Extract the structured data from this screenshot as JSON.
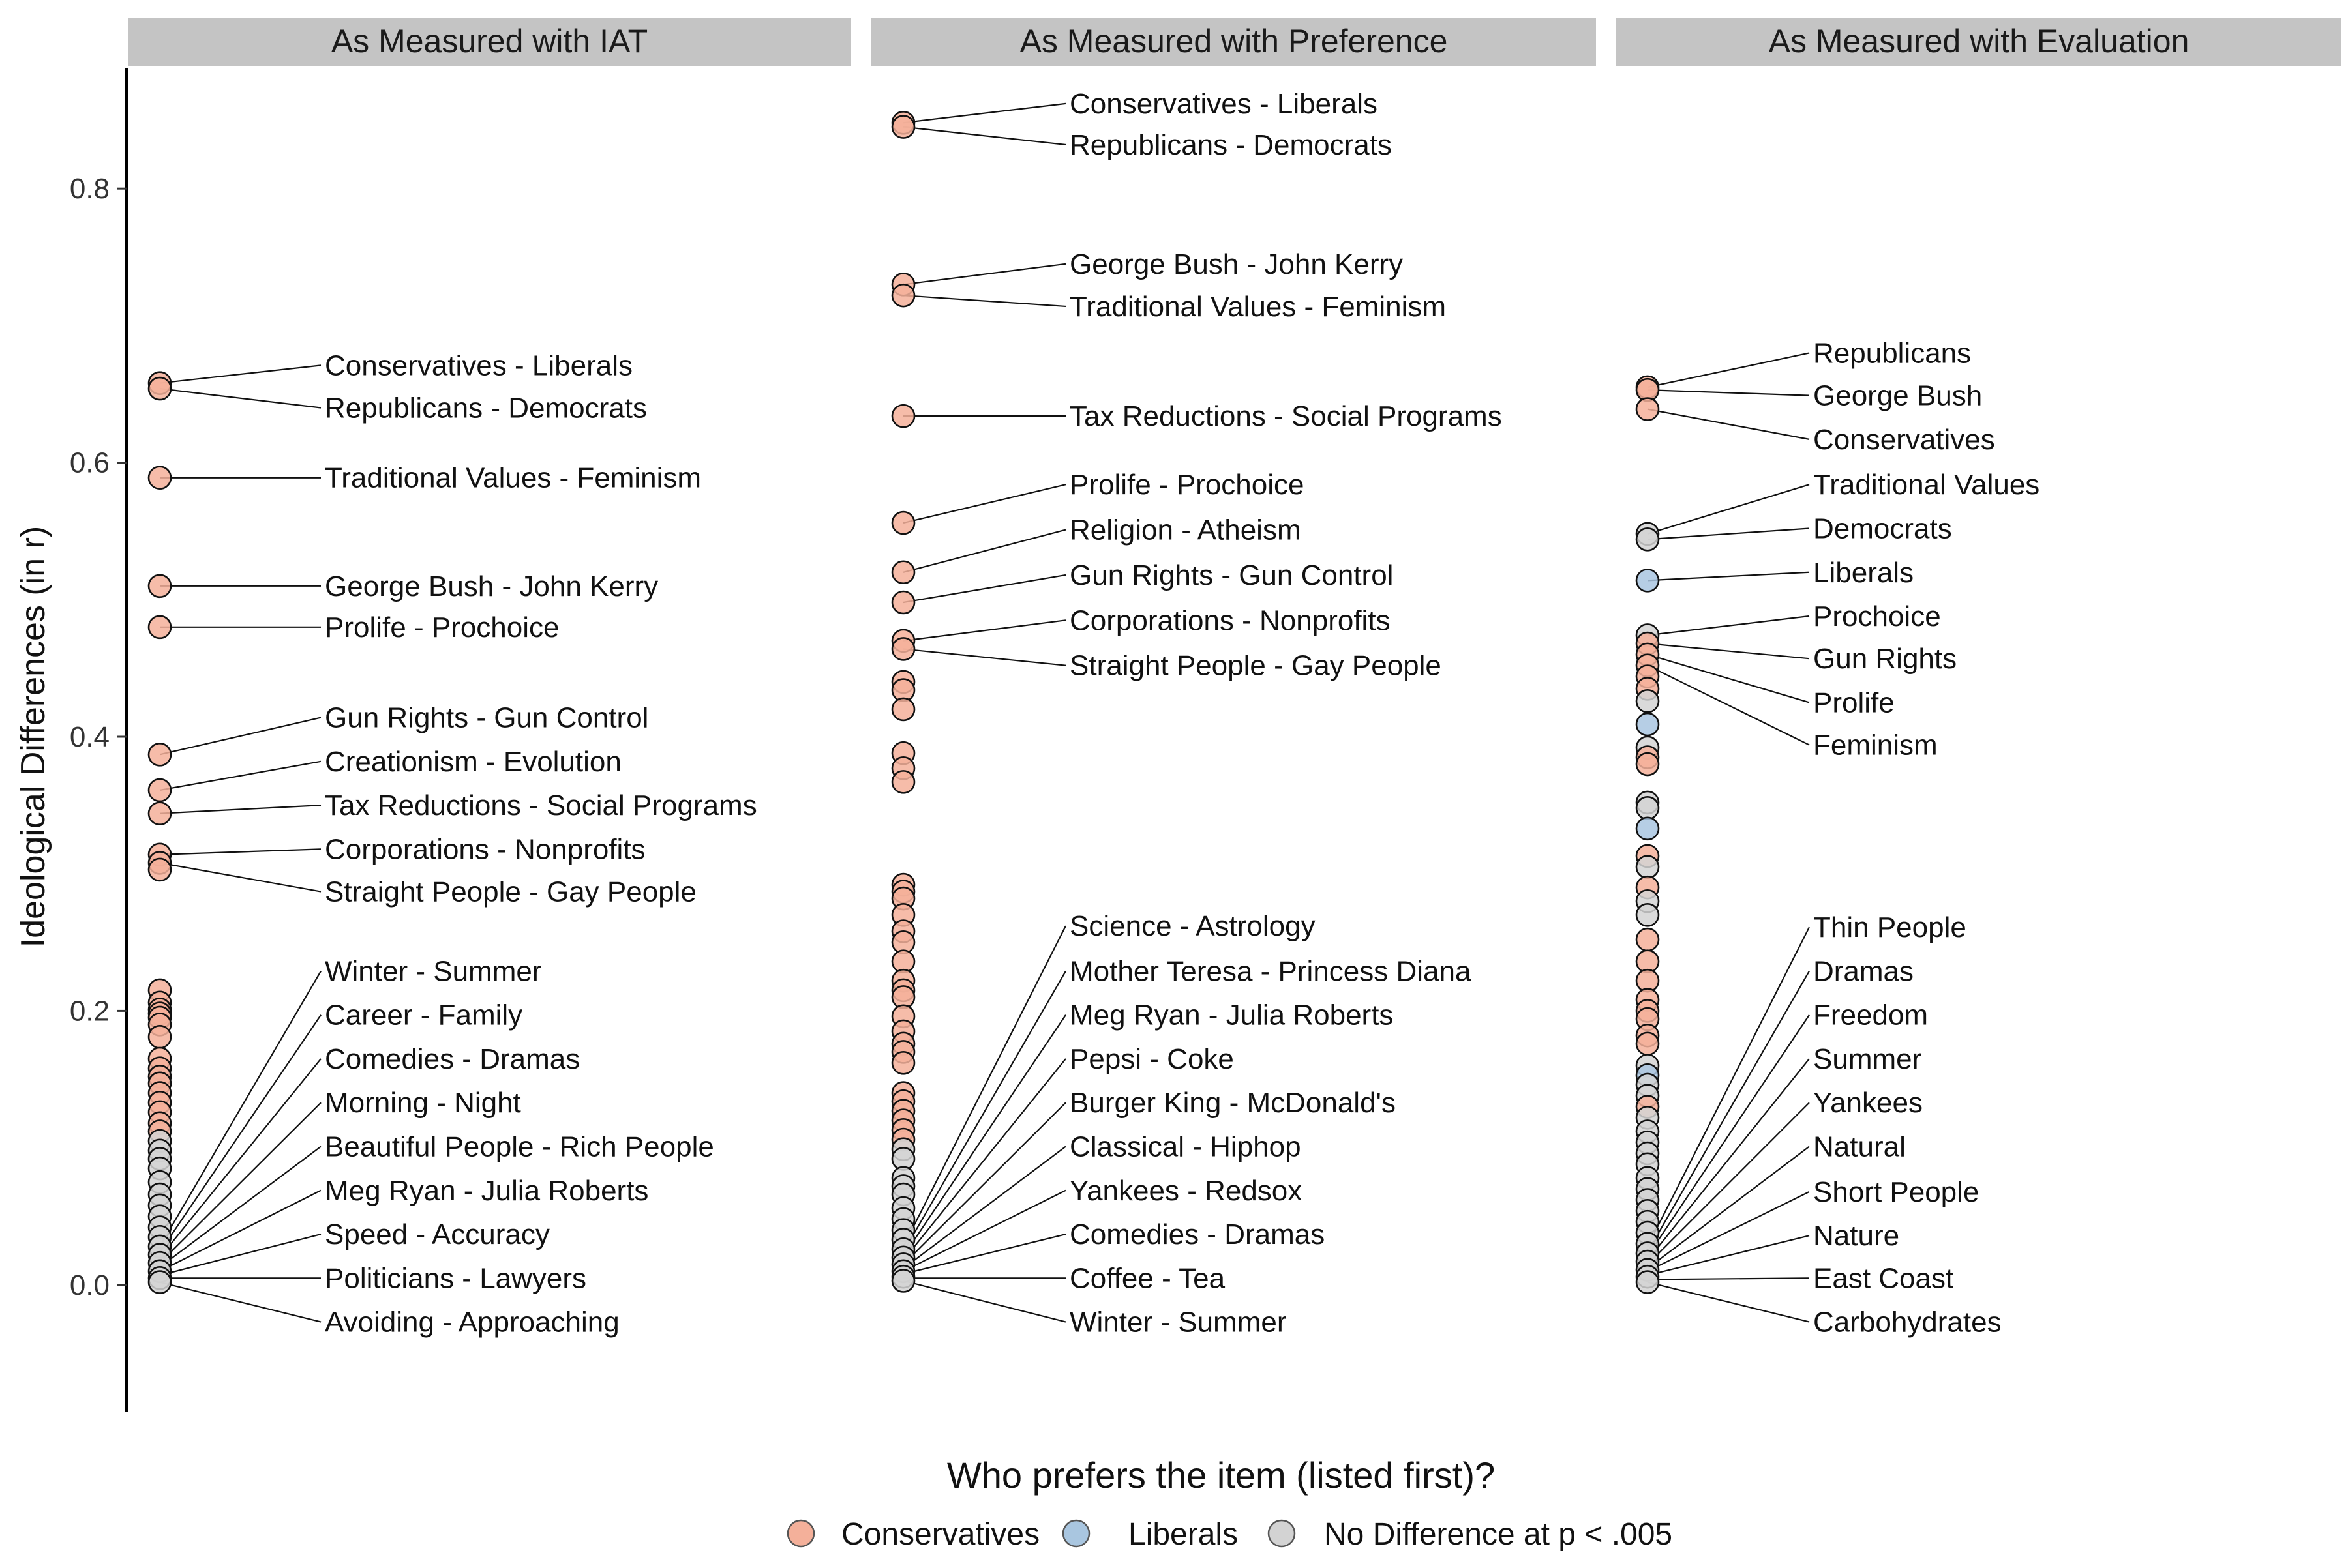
{
  "chart_data": {
    "type": "scatter",
    "ylabel": "Ideological Differences (in r)",
    "ylim": [
      -0.09,
      0.89
    ],
    "yticks": [
      0.0,
      0.2,
      0.4,
      0.6,
      0.8
    ],
    "ytick_labels": [
      "0.0",
      "0.2",
      "0.4",
      "0.6",
      "0.8"
    ],
    "legend": {
      "title": "Who prefers the item (listed first)?",
      "placement": "bottom",
      "entries": [
        {
          "name": "Conservatives",
          "color": "#F4B09A"
        },
        {
          "name": "Liberals",
          "color": "#A9C6E0"
        },
        {
          "name": "No Difference at p < .005",
          "color": "#D3D3D3"
        }
      ]
    },
    "colors": {
      "Conservatives": "#F4B09A",
      "Conservatives-dense": "#EE8A6E",
      "Liberals": "#A9C6E0",
      "No Difference": "#D3D3D3"
    },
    "panels": [
      {
        "title": "As Measured with IAT",
        "points": [
          {
            "y": 0.658,
            "g": "C"
          },
          {
            "y": 0.654,
            "g": "C"
          },
          {
            "y": 0.589,
            "g": "C"
          },
          {
            "y": 0.51,
            "g": "C"
          },
          {
            "y": 0.48,
            "g": "C"
          },
          {
            "y": 0.387,
            "g": "C"
          },
          {
            "y": 0.361,
            "g": "C"
          },
          {
            "y": 0.344,
            "g": "C"
          },
          {
            "y": 0.314,
            "g": "C"
          },
          {
            "y": 0.308,
            "g": "C"
          },
          {
            "y": 0.303,
            "g": "C"
          },
          {
            "y": 0.215,
            "g": "C"
          },
          {
            "y": 0.206,
            "g": "C"
          },
          {
            "y": 0.201,
            "g": "C"
          },
          {
            "y": 0.198,
            "g": "C"
          },
          {
            "y": 0.195,
            "g": "C"
          },
          {
            "y": 0.19,
            "g": "C"
          },
          {
            "y": 0.181,
            "g": "C"
          },
          {
            "y": 0.165,
            "g": "C"
          },
          {
            "y": 0.158,
            "g": "C"
          },
          {
            "y": 0.152,
            "g": "C"
          },
          {
            "y": 0.147,
            "g": "C"
          },
          {
            "y": 0.14,
            "g": "C"
          },
          {
            "y": 0.133,
            "g": "C"
          },
          {
            "y": 0.126,
            "g": "C"
          },
          {
            "y": 0.118,
            "g": "C"
          },
          {
            "y": 0.112,
            "g": "C"
          },
          {
            "y": 0.105,
            "g": "N"
          },
          {
            "y": 0.098,
            "g": "N"
          },
          {
            "y": 0.092,
            "g": "N"
          },
          {
            "y": 0.085,
            "g": "N"
          },
          {
            "y": 0.075,
            "g": "N"
          },
          {
            "y": 0.066,
            "g": "N"
          },
          {
            "y": 0.058,
            "g": "N"
          },
          {
            "y": 0.05,
            "g": "N"
          },
          {
            "y": 0.042,
            "g": "N"
          },
          {
            "y": 0.035,
            "g": "N"
          },
          {
            "y": 0.028,
            "g": "N"
          },
          {
            "y": 0.022,
            "g": "N"
          },
          {
            "y": 0.016,
            "g": "N"
          },
          {
            "y": 0.01,
            "g": "N"
          },
          {
            "y": 0.005,
            "g": "N"
          },
          {
            "y": 0.002,
            "g": "N"
          }
        ],
        "labels": [
          {
            "text": "Conservatives - Liberals",
            "y": 0.658,
            "ly": 0.671
          },
          {
            "text": "Republicans - Democrats",
            "y": 0.654,
            "ly": 0.64
          },
          {
            "text": "Traditional Values - Feminism",
            "y": 0.589,
            "ly": 0.589
          },
          {
            "text": "George Bush - John Kerry",
            "y": 0.51,
            "ly": 0.51
          },
          {
            "text": "Prolife - Prochoice",
            "y": 0.48,
            "ly": 0.48
          },
          {
            "text": "Gun Rights - Gun Control",
            "y": 0.387,
            "ly": 0.414
          },
          {
            "text": "Creationism - Evolution",
            "y": 0.361,
            "ly": 0.382
          },
          {
            "text": "Tax Reductions - Social Programs",
            "y": 0.344,
            "ly": 0.35
          },
          {
            "text": "Corporations - Nonprofits",
            "y": 0.314,
            "ly": 0.318
          },
          {
            "text": "Straight People - Gay People",
            "y": 0.308,
            "ly": 0.287
          },
          {
            "text": "Winter - Summer",
            "y": 0.028,
            "ly": 0.229
          },
          {
            "text": "Career - Family",
            "y": 0.024,
            "ly": 0.197
          },
          {
            "text": "Comedies - Dramas",
            "y": 0.02,
            "ly": 0.165
          },
          {
            "text": "Morning - Night",
            "y": 0.016,
            "ly": 0.133
          },
          {
            "text": "Beautiful People - Rich People",
            "y": 0.013,
            "ly": 0.101
          },
          {
            "text": "Meg Ryan - Julia Roberts",
            "y": 0.01,
            "ly": 0.069
          },
          {
            "text": "Speed - Accuracy",
            "y": 0.007,
            "ly": 0.037
          },
          {
            "text": "Politicians - Lawyers",
            "y": 0.005,
            "ly": 0.005
          },
          {
            "text": "Avoiding - Approaching",
            "y": 0.002,
            "ly": -0.027
          }
        ]
      },
      {
        "title": "As Measured with Preference",
        "points": [
          {
            "y": 0.848,
            "g": "C"
          },
          {
            "y": 0.845,
            "g": "C"
          },
          {
            "y": 0.73,
            "g": "C"
          },
          {
            "y": 0.722,
            "g": "C"
          },
          {
            "y": 0.634,
            "g": "C"
          },
          {
            "y": 0.556,
            "g": "C"
          },
          {
            "y": 0.52,
            "g": "C"
          },
          {
            "y": 0.498,
            "g": "C"
          },
          {
            "y": 0.47,
            "g": "C"
          },
          {
            "y": 0.464,
            "g": "C"
          },
          {
            "y": 0.44,
            "g": "C"
          },
          {
            "y": 0.434,
            "g": "C"
          },
          {
            "y": 0.42,
            "g": "C"
          },
          {
            "y": 0.388,
            "g": "C"
          },
          {
            "y": 0.377,
            "g": "C"
          },
          {
            "y": 0.367,
            "g": "C"
          },
          {
            "y": 0.292,
            "g": "C"
          },
          {
            "y": 0.287,
            "g": "C"
          },
          {
            "y": 0.282,
            "g": "C"
          },
          {
            "y": 0.27,
            "g": "C"
          },
          {
            "y": 0.258,
            "g": "C"
          },
          {
            "y": 0.25,
            "g": "C"
          },
          {
            "y": 0.236,
            "g": "C"
          },
          {
            "y": 0.222,
            "g": "C"
          },
          {
            "y": 0.215,
            "g": "C"
          },
          {
            "y": 0.21,
            "g": "C"
          },
          {
            "y": 0.196,
            "g": "C"
          },
          {
            "y": 0.185,
            "g": "C"
          },
          {
            "y": 0.176,
            "g": "C"
          },
          {
            "y": 0.17,
            "g": "C"
          },
          {
            "y": 0.162,
            "g": "C"
          },
          {
            "y": 0.14,
            "g": "C"
          },
          {
            "y": 0.134,
            "g": "C"
          },
          {
            "y": 0.127,
            "g": "C"
          },
          {
            "y": 0.12,
            "g": "C"
          },
          {
            "y": 0.113,
            "g": "C"
          },
          {
            "y": 0.106,
            "g": "C"
          },
          {
            "y": 0.099,
            "g": "N"
          },
          {
            "y": 0.092,
            "g": "N"
          },
          {
            "y": 0.078,
            "g": "N"
          },
          {
            "y": 0.072,
            "g": "N"
          },
          {
            "y": 0.066,
            "g": "N"
          },
          {
            "y": 0.056,
            "g": "N"
          },
          {
            "y": 0.048,
            "g": "N"
          },
          {
            "y": 0.04,
            "g": "N"
          },
          {
            "y": 0.033,
            "g": "N"
          },
          {
            "y": 0.026,
            "g": "N"
          },
          {
            "y": 0.02,
            "g": "N"
          },
          {
            "y": 0.015,
            "g": "N"
          },
          {
            "y": 0.01,
            "g": "N"
          },
          {
            "y": 0.006,
            "g": "N"
          },
          {
            "y": 0.003,
            "g": "N"
          }
        ],
        "labels": [
          {
            "text": "Conservatives - Liberals",
            "y": 0.848,
            "ly": 0.862
          },
          {
            "text": "Republicans - Democrats",
            "y": 0.845,
            "ly": 0.832
          },
          {
            "text": "George Bush - John Kerry",
            "y": 0.73,
            "ly": 0.745
          },
          {
            "text": "Traditional Values - Feminism",
            "y": 0.722,
            "ly": 0.714
          },
          {
            "text": "Tax Reductions - Social Programs",
            "y": 0.634,
            "ly": 0.634
          },
          {
            "text": "Prolife - Prochoice",
            "y": 0.556,
            "ly": 0.584
          },
          {
            "text": "Religion - Atheism",
            "y": 0.52,
            "ly": 0.551
          },
          {
            "text": "Gun Rights - Gun Control",
            "y": 0.498,
            "ly": 0.518
          },
          {
            "text": "Corporations - Nonprofits",
            "y": 0.47,
            "ly": 0.485
          },
          {
            "text": "Straight People - Gay People",
            "y": 0.464,
            "ly": 0.452
          },
          {
            "text": "Science - Astrology",
            "y": 0.028,
            "ly": 0.262
          },
          {
            "text": "Mother Teresa - Princess Diana",
            "y": 0.024,
            "ly": 0.229
          },
          {
            "text": "Meg Ryan - Julia Roberts",
            "y": 0.021,
            "ly": 0.197
          },
          {
            "text": "Pepsi - Coke",
            "y": 0.018,
            "ly": 0.165
          },
          {
            "text": "Burger King - McDonald's",
            "y": 0.015,
            "ly": 0.133
          },
          {
            "text": "Classical - Hiphop",
            "y": 0.012,
            "ly": 0.101
          },
          {
            "text": "Yankees - Redsox",
            "y": 0.01,
            "ly": 0.069
          },
          {
            "text": "Comedies - Dramas",
            "y": 0.008,
            "ly": 0.037
          },
          {
            "text": "Coffee - Tea",
            "y": 0.005,
            "ly": 0.005
          },
          {
            "text": "Winter - Summer",
            "y": 0.003,
            "ly": -0.027
          }
        ]
      },
      {
        "title": "As Measured with Evaluation",
        "points": [
          {
            "y": 0.655,
            "g": "C"
          },
          {
            "y": 0.653,
            "g": "C"
          },
          {
            "y": 0.639,
            "g": "C"
          },
          {
            "y": 0.548,
            "g": "N"
          },
          {
            "y": 0.544,
            "g": "N"
          },
          {
            "y": 0.514,
            "g": "L"
          },
          {
            "y": 0.474,
            "g": "N"
          },
          {
            "y": 0.468,
            "g": "C"
          },
          {
            "y": 0.46,
            "g": "C"
          },
          {
            "y": 0.452,
            "g": "C"
          },
          {
            "y": 0.444,
            "g": "C"
          },
          {
            "y": 0.435,
            "g": "C"
          },
          {
            "y": 0.426,
            "g": "N"
          },
          {
            "y": 0.409,
            "g": "L"
          },
          {
            "y": 0.392,
            "g": "N"
          },
          {
            "y": 0.385,
            "g": "C"
          },
          {
            "y": 0.38,
            "g": "C"
          },
          {
            "y": 0.352,
            "g": "N"
          },
          {
            "y": 0.348,
            "g": "N"
          },
          {
            "y": 0.333,
            "g": "L"
          },
          {
            "y": 0.313,
            "g": "C"
          },
          {
            "y": 0.305,
            "g": "N"
          },
          {
            "y": 0.29,
            "g": "C"
          },
          {
            "y": 0.28,
            "g": "N"
          },
          {
            "y": 0.27,
            "g": "N"
          },
          {
            "y": 0.252,
            "g": "C"
          },
          {
            "y": 0.236,
            "g": "C"
          },
          {
            "y": 0.222,
            "g": "C"
          },
          {
            "y": 0.208,
            "g": "C"
          },
          {
            "y": 0.2,
            "g": "C"
          },
          {
            "y": 0.194,
            "g": "C"
          },
          {
            "y": 0.182,
            "g": "C"
          },
          {
            "y": 0.176,
            "g": "C"
          },
          {
            "y": 0.16,
            "g": "N"
          },
          {
            "y": 0.153,
            "g": "L"
          },
          {
            "y": 0.146,
            "g": "N"
          },
          {
            "y": 0.138,
            "g": "N"
          },
          {
            "y": 0.13,
            "g": "C"
          },
          {
            "y": 0.122,
            "g": "N"
          },
          {
            "y": 0.112,
            "g": "N"
          },
          {
            "y": 0.104,
            "g": "N"
          },
          {
            "y": 0.096,
            "g": "N"
          },
          {
            "y": 0.088,
            "g": "N"
          },
          {
            "y": 0.078,
            "g": "N"
          },
          {
            "y": 0.07,
            "g": "N"
          },
          {
            "y": 0.062,
            "g": "N"
          },
          {
            "y": 0.054,
            "g": "N"
          },
          {
            "y": 0.046,
            "g": "N"
          },
          {
            "y": 0.038,
            "g": "N"
          },
          {
            "y": 0.03,
            "g": "N"
          },
          {
            "y": 0.023,
            "g": "N"
          },
          {
            "y": 0.017,
            "g": "N"
          },
          {
            "y": 0.011,
            "g": "N"
          },
          {
            "y": 0.006,
            "g": "N"
          },
          {
            "y": 0.002,
            "g": "N"
          }
        ],
        "labels": [
          {
            "text": "Republicans",
            "y": 0.655,
            "ly": 0.68
          },
          {
            "text": "George Bush",
            "y": 0.653,
            "ly": 0.649
          },
          {
            "text": "Conservatives",
            "y": 0.639,
            "ly": 0.617
          },
          {
            "text": "Traditional Values",
            "y": 0.548,
            "ly": 0.584
          },
          {
            "text": "Democrats",
            "y": 0.544,
            "ly": 0.552
          },
          {
            "text": "Liberals",
            "y": 0.514,
            "ly": 0.52
          },
          {
            "text": "Prochoice",
            "y": 0.474,
            "ly": 0.488
          },
          {
            "text": "Gun Rights",
            "y": 0.468,
            "ly": 0.457
          },
          {
            "text": "Prolife",
            "y": 0.46,
            "ly": 0.425
          },
          {
            "text": "Feminism",
            "y": 0.452,
            "ly": 0.394
          },
          {
            "text": "Thin People",
            "y": 0.028,
            "ly": 0.261
          },
          {
            "text": "Dramas",
            "y": 0.024,
            "ly": 0.229
          },
          {
            "text": "Freedom",
            "y": 0.021,
            "ly": 0.197
          },
          {
            "text": "Summer",
            "y": 0.018,
            "ly": 0.165
          },
          {
            "text": "Yankees",
            "y": 0.015,
            "ly": 0.133
          },
          {
            "text": "Natural",
            "y": 0.012,
            "ly": 0.101
          },
          {
            "text": "Short People",
            "y": 0.01,
            "ly": 0.068
          },
          {
            "text": "Nature",
            "y": 0.007,
            "ly": 0.036
          },
          {
            "text": "East Coast",
            "y": 0.004,
            "ly": 0.005
          },
          {
            "text": "Carbohydrates",
            "y": 0.002,
            "ly": -0.027
          }
        ]
      }
    ]
  }
}
